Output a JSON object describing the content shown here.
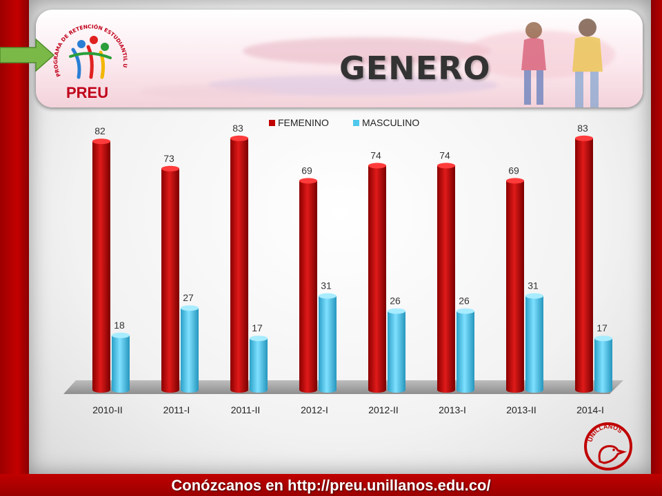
{
  "banner": {
    "title": "GENERO",
    "logo_text": "PREU",
    "logo_ring_text": "PROGRAMA DE RETENCIÓN ESTUDIANTIL UNILLANISTA"
  },
  "footer": {
    "text": "Conózcanos en http://preu.unillanos.edu.co/"
  },
  "university_logo_text": "UNILLANOS",
  "chart_data": {
    "type": "bar",
    "categories": [
      "2010-II",
      "2011-I",
      "2011-II",
      "2012-I",
      "2012-II",
      "2013-I",
      "2013-II",
      "2014-I"
    ],
    "series": [
      {
        "name": "FEMENINO",
        "color": "#c00000",
        "values": [
          82,
          73,
          83,
          69,
          74,
          74,
          69,
          83
        ]
      },
      {
        "name": "MASCULINO",
        "color": "#4fc8ec",
        "values": [
          18,
          27,
          17,
          31,
          26,
          26,
          31,
          17
        ]
      }
    ],
    "ylim": [
      0,
      90
    ],
    "grid": false,
    "legend": "top-center",
    "data_labels": true,
    "style": "3d-cylinder"
  }
}
